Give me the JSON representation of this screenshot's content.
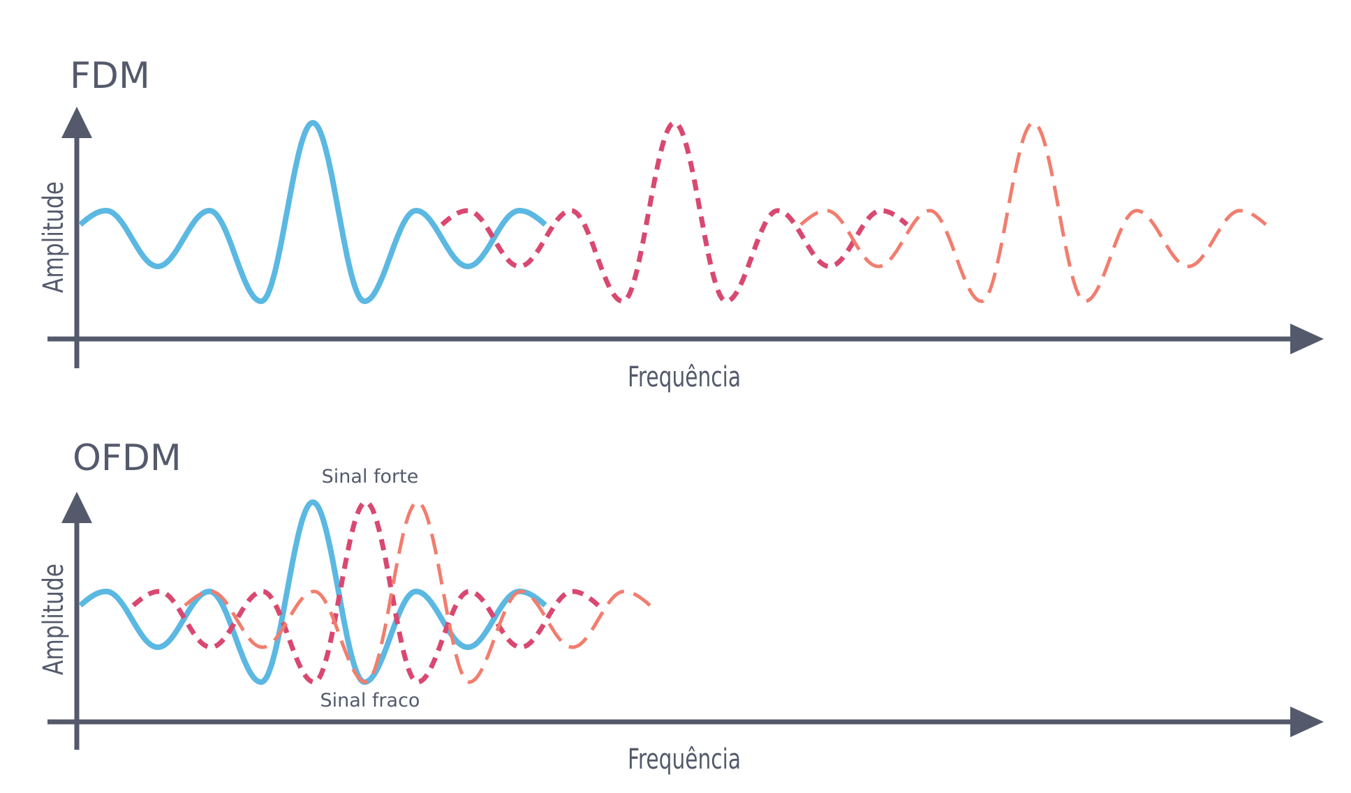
{
  "colors": {
    "axis": "#545a6b",
    "text": "#545a6b",
    "blue": "#5bb8e2",
    "magenta": "#d94870",
    "salmon": "#f27d6e"
  },
  "fdm": {
    "title": "FDM",
    "y_label": "Amplitude",
    "x_label": "Frequência"
  },
  "ofdm": {
    "title": "OFDM",
    "y_label": "Amplitude",
    "x_label": "Frequência",
    "strong_label": "Sinal forte",
    "weak_label": "Sinal fraco"
  },
  "chart_data": [
    {
      "type": "line",
      "title": "FDM",
      "xlabel": "Frequência",
      "ylabel": "Amplitude",
      "series": [
        {
          "color": "#5bb8e2",
          "style": "solid",
          "center": 1
        },
        {
          "color": "#d94870",
          "style": "short-dash",
          "center": 2
        },
        {
          "color": "#f27d6e",
          "style": "long-dash",
          "center": 3
        }
      ]
    },
    {
      "type": "line",
      "title": "OFDM",
      "xlabel": "Frequência",
      "ylabel": "Amplitude",
      "series": [
        {
          "color": "#5bb8e2",
          "style": "solid",
          "center": 1
        },
        {
          "color": "#d94870",
          "style": "short-dash",
          "center": 2
        },
        {
          "color": "#f27d6e",
          "style": "long-dash",
          "center": 3
        }
      ]
    }
  ]
}
